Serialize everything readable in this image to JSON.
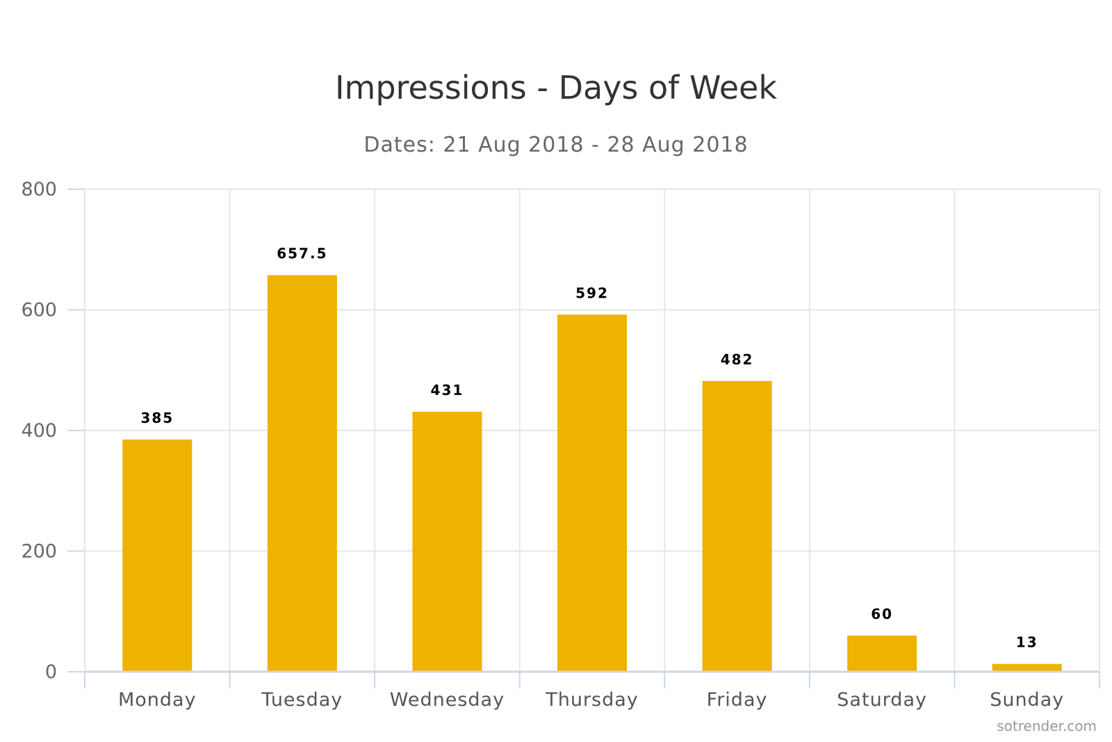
{
  "colors": {
    "bar": "#EEB200",
    "grid": "#E6E6E6",
    "axis": "#CCD6EB",
    "title": "#333333",
    "subtitle": "#666666",
    "label": "#000000"
  },
  "credit": "sotrender.com",
  "chart_data": {
    "type": "bar",
    "title": "Impressions - Days of Week",
    "subtitle": "Dates: 21 Aug 2018 - 28 Aug 2018",
    "categories": [
      "Monday",
      "Tuesday",
      "Wednesday",
      "Thursday",
      "Friday",
      "Saturday",
      "Sunday"
    ],
    "values": [
      385,
      657.5,
      431,
      592,
      482,
      60,
      13
    ],
    "data_labels": [
      "385",
      "657.5",
      "431",
      "592",
      "482",
      "60",
      "13"
    ],
    "xlabel": "",
    "ylabel": "",
    "ylim": [
      0,
      800
    ],
    "yticks": [
      0,
      200,
      400,
      600,
      800
    ],
    "grid": true,
    "legend": "none"
  }
}
